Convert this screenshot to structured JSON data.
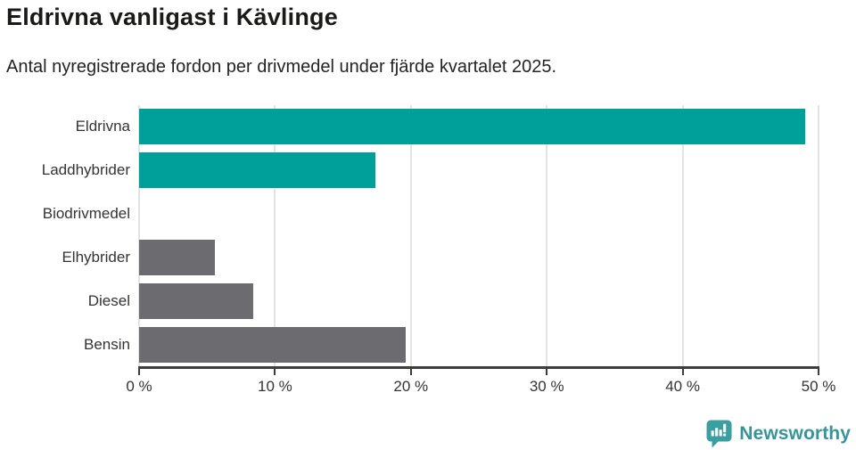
{
  "chart_data": {
    "type": "bar",
    "orientation": "horizontal",
    "title": "Eldrivna vanligast i Kävlinge",
    "subtitle": "Antal nyregistrerade fordon per drivmedel under fjärde kvartalet 2025.",
    "categories": [
      "Eldrivna",
      "Laddhybrider",
      "Biodrivmedel",
      "Elhybrider",
      "Diesel",
      "Bensin"
    ],
    "values": [
      49,
      17.4,
      0,
      5.6,
      8.4,
      19.6
    ],
    "unit": "%",
    "xlabel": "",
    "ylabel": "",
    "xlim": [
      0,
      50
    ],
    "x_ticks": [
      0,
      10,
      20,
      30,
      40,
      50
    ],
    "x_tick_labels": [
      "0 %",
      "10 %",
      "20 %",
      "30 %",
      "40 %",
      "50 %"
    ],
    "bar_colors": [
      "#00a09a",
      "#00a09a",
      "#6c6c70",
      "#6c6c70",
      "#6c6c70",
      "#6c6c70"
    ],
    "colors": {
      "highlight": "#00a09a",
      "muted": "#6c6c70",
      "axis": "#3d3d3d",
      "gridline": "#e3e3e3",
      "label_text": "#333333"
    },
    "grid": true,
    "legend": "none"
  },
  "branding": {
    "logo_text": "Newsworthy",
    "logo_icon": "newsworthy-bar-chart-bubble-icon",
    "logo_icon_color": "#3b9fa1",
    "logo_text_color": "#38949b"
  }
}
